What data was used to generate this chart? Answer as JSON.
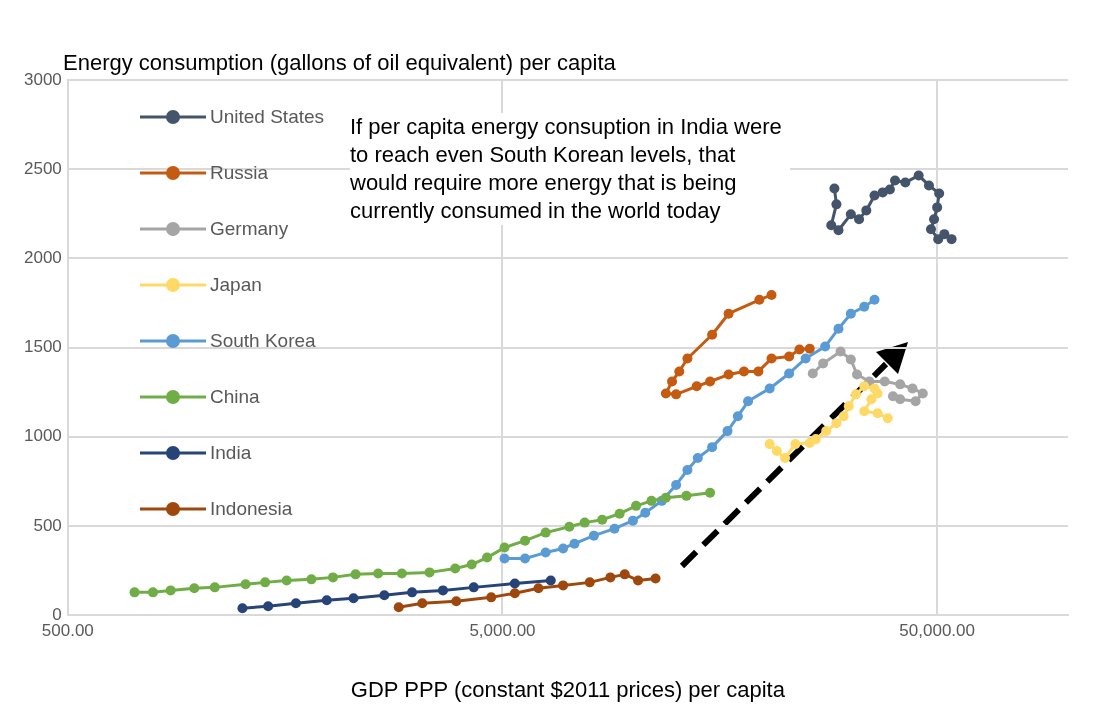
{
  "chart_data": {
    "type": "line",
    "ylabel": "Energy consumption (gallons of oil equivalent) per capita",
    "xlabel": "GDP PPP (constant $2011 prices) per capita",
    "annotations": [
      "If per capita energy consuption in India were to reach even South Korean levels, that would require more energy that is being currently consumed in the world today"
    ],
    "log": "x",
    "xlim": [
      500,
      100000
    ],
    "xticks": [
      {
        "value": 500,
        "label": "500.00"
      },
      {
        "value": 5000,
        "label": "5,000.00"
      },
      {
        "value": 50000,
        "label": "50,000.00"
      }
    ],
    "ylim": [
      0,
      3000
    ],
    "yticks": [
      0,
      500,
      1000,
      1500,
      2000,
      2500,
      3000
    ],
    "grid": true,
    "legend": "top left",
    "marker": "circle",
    "series": [
      {
        "name": "United States",
        "color": "#44546a",
        "x": [
          29012,
          29326,
          28534,
          29646,
          31654,
          33059,
          34356,
          35879,
          37470,
          38925,
          40000,
          42245,
          45337,
          47872,
          50541,
          50000,
          49183,
          48392,
          50275,
          51943,
          53972
        ],
        "values": [
          2392,
          2303,
          2186,
          2158,
          2247,
          2219,
          2269,
          2353,
          2370,
          2386,
          2437,
          2425,
          2465,
          2409,
          2364,
          2286,
          2219,
          2163,
          2108,
          2136,
          2108
        ]
      },
      {
        "name": "Russia",
        "color": "#c55a11",
        "x": [
          20794,
          19497,
          16564,
          15179,
          13318,
          12756,
          12275,
          11881,
          12544,
          13991,
          15016,
          16564,
          17971,
          19393,
          20794,
          22826,
          24108,
          25460
        ],
        "values": [
          1795,
          1768,
          1690,
          1572,
          1439,
          1366,
          1310,
          1243,
          1238,
          1283,
          1310,
          1349,
          1366,
          1366,
          1439,
          1450,
          1489,
          1494
        ]
      },
      {
        "name": "Germany",
        "color": "#a5a5a5",
        "x": [
          25870,
          27324,
          29970,
          31654,
          32703,
          34910,
          37878,
          41099,
          43875,
          46335,
          44604,
          41099,
          39566
        ],
        "values": [
          1355,
          1411,
          1478,
          1433,
          1349,
          1310,
          1310,
          1294,
          1271,
          1243,
          1199,
          1210,
          1227
        ]
      },
      {
        "name": "Japan",
        "color": "#ffd966",
        "x": [
          20592,
          21385,
          22340,
          23593,
          25460,
          26302,
          27780,
          29326,
          30476,
          31311,
          32520,
          33983,
          35879,
          36470,
          35300,
          33983,
          36470,
          38500
        ],
        "values": [
          959,
          920,
          881,
          959,
          965,
          987,
          1032,
          1076,
          1115,
          1171,
          1238,
          1283,
          1271,
          1243,
          1210,
          1143,
          1132,
          1104
        ]
      },
      {
        "name": "South Korea",
        "color": "#5b9bd5",
        "x": [
          5054,
          5635,
          6284,
          6894,
          7322,
          8115,
          9050,
          9979,
          10654,
          11627,
          12544,
          13318,
          14070,
          15179,
          16469,
          17397,
          18365,
          20592,
          22826,
          24913,
          27625,
          29646,
          31654,
          33983,
          35879
        ],
        "values": [
          318,
          318,
          351,
          374,
          401,
          446,
          485,
          530,
          574,
          641,
          730,
          814,
          881,
          942,
          1032,
          1115,
          1199,
          1271,
          1355,
          1439,
          1506,
          1606,
          1690,
          1729,
          1768
        ]
      },
      {
        "name": "China",
        "color": "#70ad47",
        "x": [
          712,
          785,
          862,
          977,
          1089,
          1282,
          1422,
          1594,
          1817,
          2037,
          2296,
          2588,
          2934,
          3397,
          3892,
          4247,
          4608,
          5054,
          5635,
          6284,
          7125,
          7728,
          8478,
          9300,
          10147,
          11010,
          11881,
          13248,
          15016
        ],
        "values": [
          128,
          128,
          139,
          151,
          156,
          173,
          184,
          195,
          201,
          212,
          229,
          234,
          234,
          240,
          262,
          284,
          323,
          379,
          418,
          463,
          496,
          519,
          535,
          569,
          613,
          641,
          658,
          669,
          686
        ]
      },
      {
        "name": "India",
        "color": "#264478",
        "x": [
          1261,
          1445,
          1674,
          1971,
          2271,
          2674,
          3097,
          3648,
          4294,
          5338,
          6457
        ],
        "values": [
          39,
          50,
          67,
          84,
          95,
          112,
          128,
          139,
          156,
          178,
          195
        ]
      },
      {
        "name": "Indonesia",
        "color": "#9e480e",
        "x": [
          2886,
          3270,
          3914,
          4710,
          5338,
          6049,
          6894,
          7940,
          8855,
          9555,
          10254,
          11249
        ],
        "values": [
          45,
          67,
          78,
          100,
          123,
          151,
          167,
          184,
          212,
          229,
          195,
          206
        ]
      }
    ]
  }
}
